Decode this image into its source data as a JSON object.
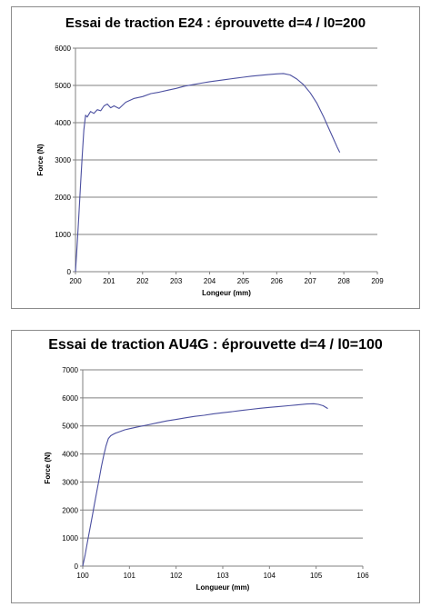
{
  "chart_data": [
    {
      "type": "line",
      "title": "Essai de traction E24 : éprouvette d=4 / l0=200",
      "xlabel": "Longeur (mm)",
      "ylabel": "Force (N)",
      "xlim": [
        200,
        209
      ],
      "ylim": [
        0,
        6000
      ],
      "x_ticks": [
        "200",
        "201",
        "202",
        "203",
        "204",
        "205",
        "206",
        "207",
        "208",
        "209"
      ],
      "y_ticks": [
        "0",
        "1000",
        "2000",
        "3000",
        "4000",
        "5000",
        "6000"
      ],
      "grid": "horizontal",
      "legend": "none",
      "color": "#4b4fa0",
      "series": [
        {
          "x": [
            200.0,
            200.05,
            200.1,
            200.15,
            200.2,
            200.25,
            200.3,
            200.35,
            200.45,
            200.55,
            200.65,
            200.75,
            200.85,
            200.95,
            201.05,
            201.15,
            201.3,
            201.5,
            201.75,
            202.0,
            202.25,
            202.5,
            202.75,
            203.0,
            203.25,
            203.5,
            203.75,
            204.0,
            204.25,
            204.5,
            204.75,
            205.0,
            205.25,
            205.5,
            205.75,
            206.0,
            206.2,
            206.4,
            206.6,
            206.8,
            207.0,
            207.2,
            207.4,
            207.55,
            207.7,
            207.8,
            207.88
          ],
          "y": [
            0,
            700,
            1500,
            2300,
            3100,
            3800,
            4200,
            4150,
            4300,
            4250,
            4350,
            4320,
            4450,
            4500,
            4400,
            4450,
            4380,
            4550,
            4650,
            4700,
            4780,
            4820,
            4870,
            4920,
            4980,
            5020,
            5060,
            5100,
            5130,
            5160,
            5190,
            5220,
            5250,
            5270,
            5290,
            5310,
            5320,
            5280,
            5170,
            5020,
            4800,
            4520,
            4150,
            3850,
            3550,
            3350,
            3200
          ]
        }
      ]
    },
    {
      "type": "line",
      "title": "Essai de traction AU4G : éprouvette d=4 / l0=100",
      "xlabel": "Longueur (mm)",
      "ylabel": "Force (N)",
      "xlim": [
        100,
        106
      ],
      "ylim": [
        0,
        7000
      ],
      "x_ticks": [
        "100",
        "101",
        "102",
        "103",
        "104",
        "105",
        "106"
      ],
      "y_ticks": [
        "0",
        "1000",
        "2000",
        "3000",
        "4000",
        "5000",
        "6000",
        "7000"
      ],
      "grid": "horizontal",
      "legend": "none",
      "color": "#4b4fa0",
      "series": [
        {
          "x": [
            100.0,
            100.05,
            100.1,
            100.15,
            100.2,
            100.25,
            100.3,
            100.35,
            100.4,
            100.45,
            100.5,
            100.55,
            100.6,
            100.65,
            100.7,
            100.8,
            100.9,
            101.0,
            101.2,
            101.4,
            101.6,
            101.8,
            102.0,
            102.2,
            102.4,
            102.6,
            102.8,
            103.0,
            103.2,
            103.4,
            103.6,
            103.8,
            104.0,
            104.2,
            104.4,
            104.6,
            104.8,
            104.95,
            105.05,
            105.15,
            105.25
          ],
          "y": [
            0,
            400,
            850,
            1300,
            1750,
            2200,
            2650,
            3100,
            3550,
            3950,
            4300,
            4550,
            4650,
            4700,
            4740,
            4800,
            4860,
            4900,
            4970,
            5040,
            5110,
            5180,
            5230,
            5290,
            5340,
            5380,
            5430,
            5470,
            5510,
            5550,
            5590,
            5630,
            5660,
            5690,
            5720,
            5750,
            5780,
            5790,
            5770,
            5720,
            5620
          ]
        }
      ]
    }
  ]
}
